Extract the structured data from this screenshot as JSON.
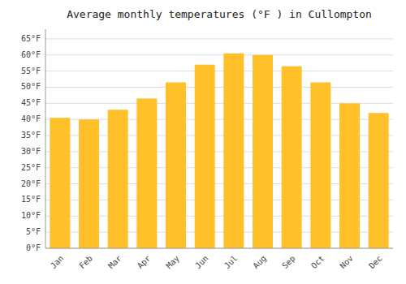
{
  "chart_data": {
    "type": "bar",
    "title": "Average monthly temperatures (°F ) in Cullompton",
    "categories": [
      "Jan",
      "Feb",
      "Mar",
      "Apr",
      "May",
      "Jun",
      "Jul",
      "Aug",
      "Sep",
      "Oct",
      "Nov",
      "Dec"
    ],
    "values": [
      40.5,
      40.0,
      43.0,
      46.5,
      51.5,
      57.0,
      60.5,
      60.0,
      56.5,
      51.5,
      45.0,
      42.0
    ],
    "color": "#FFC02A",
    "ylim": [
      0,
      68
    ],
    "yticks": [
      {
        "value": 0,
        "label": "0°F"
      },
      {
        "value": 5,
        "label": "5°F"
      },
      {
        "value": 10,
        "label": "10°F"
      },
      {
        "value": 15,
        "label": "15°F"
      },
      {
        "value": 20,
        "label": "20°F"
      },
      {
        "value": 25,
        "label": "25°F"
      },
      {
        "value": 30,
        "label": "30°F"
      },
      {
        "value": 35,
        "label": "35°F"
      },
      {
        "value": 40,
        "label": "40°F"
      },
      {
        "value": 45,
        "label": "45°F"
      },
      {
        "value": 50,
        "label": "50°F"
      },
      {
        "value": 55,
        "label": "55°F"
      },
      {
        "value": 60,
        "label": "60°F"
      },
      {
        "value": 65,
        "label": "65°F"
      }
    ],
    "grid": true
  }
}
